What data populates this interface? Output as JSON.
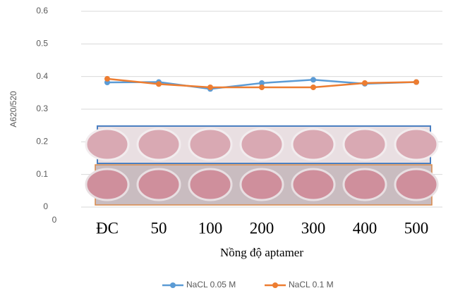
{
  "chart_data": {
    "type": "line",
    "y_label": "A620/520",
    "x_label": "Nồng độ aptamer",
    "origin_label": "0",
    "categories": [
      "ĐC",
      "50",
      "100",
      "200",
      "300",
      "400",
      "500"
    ],
    "series": [
      {
        "name": "NaCL 0.05 M",
        "color": "#5b9bd5",
        "values": [
          0.382,
          0.383,
          0.362,
          0.38,
          0.39,
          0.378,
          0.383
        ]
      },
      {
        "name": "NaCL 0.1 M",
        "color": "#ed7d31",
        "values": [
          0.393,
          0.377,
          0.367,
          0.367,
          0.367,
          0.38,
          0.383
        ]
      }
    ],
    "ylim": [
      0,
      0.6
    ],
    "yticks": [
      0,
      0.1,
      0.2,
      0.3,
      0.4,
      0.5,
      0.6
    ],
    "grid": true,
    "legend": "bottom"
  }
}
